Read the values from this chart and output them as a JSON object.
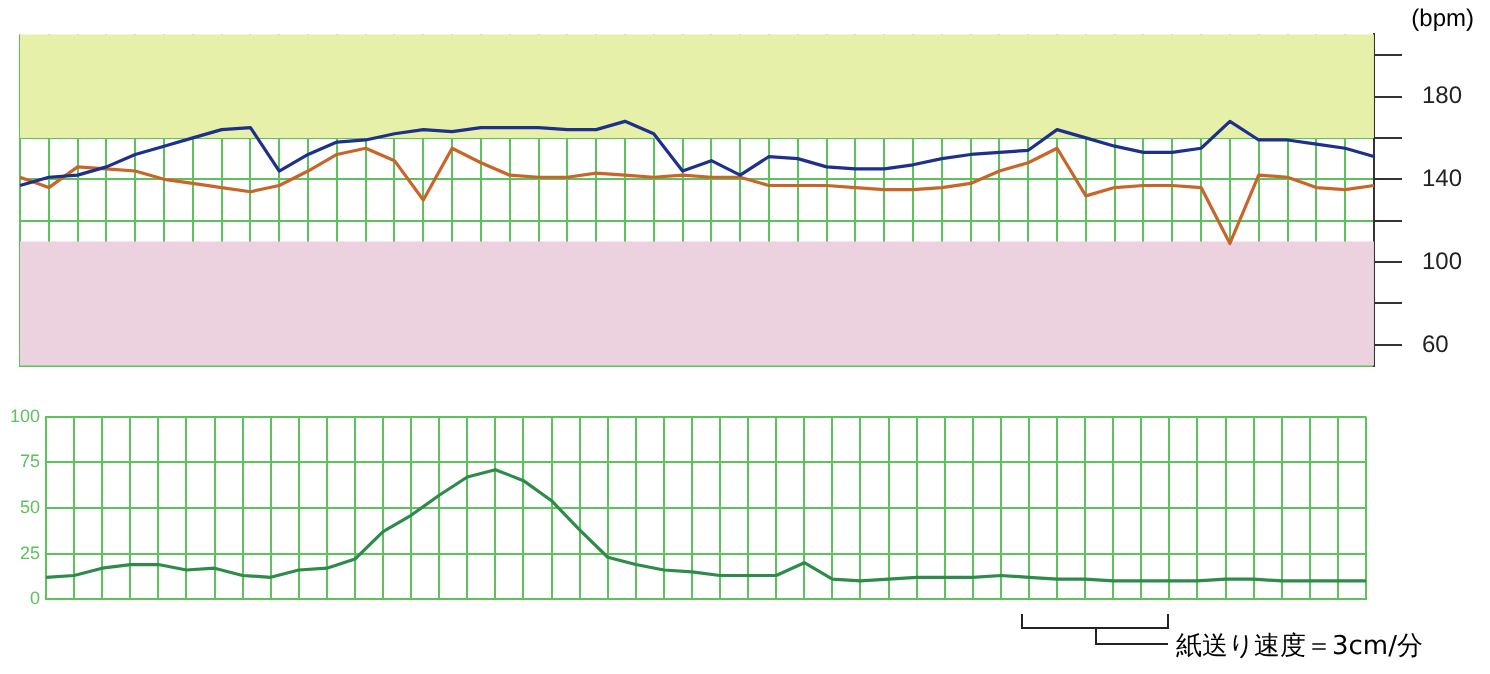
{
  "chart_data": [
    {
      "type": "line",
      "ylabel": "(bpm)",
      "categories": [
        null,
        null,
        null,
        null,
        null,
        null,
        null,
        null,
        null,
        null,
        null,
        null,
        null,
        null,
        null,
        null,
        null,
        null,
        null,
        null,
        null,
        null,
        null,
        null,
        null,
        null,
        null,
        null,
        null,
        null,
        null,
        null,
        null,
        null,
        null,
        null,
        null,
        null,
        null,
        null,
        null,
        null,
        null,
        null,
        null,
        null,
        null,
        null
      ],
      "series": [
        {
          "color": "#1f2f8c",
          "values": [
            137,
            141,
            142,
            146,
            152,
            156,
            160,
            164,
            165,
            144,
            152,
            158,
            159,
            162,
            164,
            163,
            165,
            165,
            165,
            164,
            164,
            168,
            162,
            144,
            149,
            142,
            151,
            150,
            146,
            145,
            145,
            147,
            150,
            152,
            153,
            154,
            164,
            160,
            156,
            153,
            153,
            155,
            168,
            159,
            159,
            157,
            155,
            151
          ]
        },
        {
          "color": "#c8652a",
          "values": [
            141,
            136,
            146,
            145,
            144,
            140,
            138,
            136,
            134,
            137,
            144,
            152,
            155,
            149,
            130,
            155,
            148,
            142,
            141,
            141,
            143,
            142,
            141,
            142,
            141,
            141,
            137,
            137,
            137,
            136,
            135,
            135,
            136,
            138,
            144,
            148,
            155,
            132,
            136,
            137,
            137,
            136,
            109,
            142,
            141,
            136,
            135,
            137
          ]
        }
      ],
      "ylim": [
        50,
        210
      ],
      "yticks": [
        {
          "value": 200,
          "label": null
        },
        180,
        {
          "value": 160,
          "label": null
        },
        {
          "value": 140,
          "label": "140"
        },
        {
          "value": 120,
          "label": null
        },
        {
          "value": 100,
          "label": "100"
        },
        {
          "value": 80,
          "label": null
        },
        {
          "value": 60,
          "label": "60"
        }
      ],
      "bands": [
        {
          "axis": "y",
          "from": 160,
          "to": 210,
          "color": "#e6f0a8"
        },
        {
          "axis": "y",
          "from": 50,
          "to": 110,
          "color": "#ecd2de"
        }
      ],
      "grid": true,
      "tick_labels": "y",
      "legend": false
    },
    {
      "type": "line",
      "categories": [
        null,
        null,
        null,
        null,
        null,
        null,
        null,
        null,
        null,
        null,
        null,
        null,
        null,
        null,
        null,
        null,
        null,
        null,
        null,
        null,
        null,
        null,
        null,
        null,
        null,
        null,
        null,
        null,
        null,
        null,
        null,
        null,
        null,
        null,
        null,
        null,
        null,
        null,
        null,
        null,
        null,
        null,
        null,
        null,
        null,
        null,
        null,
        null
      ],
      "series": [
        {
          "color": "#2e8b4a",
          "values": [
            12,
            13,
            17,
            19,
            19,
            16,
            17,
            13,
            12,
            16,
            17,
            22,
            37,
            46,
            57,
            67,
            71,
            65,
            54,
            38,
            23,
            19,
            16,
            15,
            13,
            13,
            13,
            20,
            11,
            10,
            11,
            12,
            12,
            12,
            13,
            12,
            11,
            11,
            10,
            10,
            10,
            10,
            11,
            11,
            10,
            10,
            10,
            10
          ]
        }
      ],
      "ylim": [
        0,
        100
      ],
      "yticks": [
        0,
        25,
        50,
        75,
        100
      ],
      "grid": true,
      "tick_labels": "y",
      "legend": false,
      "annotations": [
        "紙送り速度＝3cm/分"
      ]
    }
  ]
}
